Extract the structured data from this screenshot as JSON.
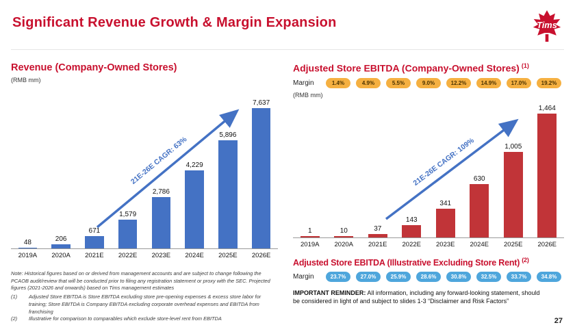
{
  "slide": {
    "title": "Significant Revenue Growth & Margin Expansion",
    "page_number": "27",
    "logo_text": "Tims"
  },
  "colors": {
    "accent_red": "#C8102E",
    "bar_blue": "#4472C4",
    "bar_red": "#C13438",
    "badge_yellow": "#F5B041",
    "badge_blue": "#4EA6DC",
    "arrow_blue": "#4472C4"
  },
  "left_section": {
    "heading": "Revenue (Company-Owned Stores)",
    "unit_label": "(RMB mm)"
  },
  "right_section": {
    "heading": "Adjusted Store EBITDA (Company-Owned Stores)",
    "heading_sup": "(1)",
    "unit_label": "(RMB mm)",
    "heading2": "Adjusted Store EBITDA (Illustrative Excluding Store Rent)",
    "heading2_sup": "(2)"
  },
  "margin_rows": [
    {
      "label": "Margin",
      "style": "yellow",
      "values": [
        "1.4%",
        "4.9%",
        "5.5%",
        "9.0%",
        "12.2%",
        "14.9%",
        "17.0%",
        "19.2%"
      ]
    },
    {
      "label": "Margin",
      "style": "blue",
      "values": [
        "23.7%",
        "27.0%",
        "25.9%",
        "28.6%",
        "30.8%",
        "32.5%",
        "33.7%",
        "34.8%"
      ]
    }
  ],
  "notes": {
    "note": "Note: Historical figures based on or derived from management accounts and are subject to change following the PCAOB audit/review that will be conducted prior to filing any registration statement or proxy with the SEC. Projected figures (2021-2026 and onwards) based on Tims management estimates",
    "items": [
      {
        "num": "(1)",
        "text": "Adjusted Store EBITDA is Store EBITDA excluding store pre-opening expenses & excess store labor for training; Store EBITDA is Company EBITDA excluding corporate overhead expenses and EBITDA from franchising"
      },
      {
        "num": "(2)",
        "text": "Illustrative for comparison to comparables which exclude store-level rent from EBITDA"
      }
    ]
  },
  "reminder": {
    "label": "IMPORTANT REMINDER:",
    "text": "All information, including any forward-looking statement, should be considered in light of and subject to slides 1-3 “Disclaimer and Risk Factors”"
  },
  "chart_data": [
    {
      "type": "bar",
      "title": "Revenue (Company-Owned Stores)",
      "ylabel": "RMB mm",
      "categories": [
        "2019A",
        "2020A",
        "2021E",
        "2022E",
        "2023E",
        "2024E",
        "2025E",
        "2026E"
      ],
      "values": [
        48,
        206,
        671,
        1579,
        2786,
        4229,
        5896,
        7637
      ],
      "value_labels": [
        "48",
        "206",
        "671",
        "1,579",
        "2,786",
        "4,229",
        "5,896",
        "7,637"
      ],
      "bar_color": "#4472C4",
      "annotation": "21E-26E CAGR: 63%",
      "ylim": [
        0,
        7637
      ],
      "grid": false,
      "legend": false
    },
    {
      "type": "bar",
      "title": "Adjusted Store EBITDA (Company-Owned Stores)",
      "ylabel": "RMB mm",
      "categories": [
        "2019A",
        "2020A",
        "2021E",
        "2022E",
        "2023E",
        "2024E",
        "2025E",
        "2026E"
      ],
      "values": [
        1,
        10,
        37,
        143,
        341,
        630,
        1005,
        1464
      ],
      "value_labels": [
        "1",
        "10",
        "37",
        "143",
        "341",
        "630",
        "1,005",
        "1,464"
      ],
      "bar_color": "#C13438",
      "annotation": "21E-26E CAGR: 109%",
      "ylim": [
        0,
        1464
      ],
      "grid": false,
      "legend": false,
      "margins": [
        "1.4%",
        "4.9%",
        "5.5%",
        "9.0%",
        "12.2%",
        "14.9%",
        "17.0%",
        "19.2%"
      ]
    },
    {
      "type": "table",
      "title": "Adjusted Store EBITDA (Illustrative Excluding Store Rent)",
      "categories": [
        "2019A",
        "2020A",
        "2021E",
        "2022E",
        "2023E",
        "2024E",
        "2025E",
        "2026E"
      ],
      "values": [
        "23.7%",
        "27.0%",
        "25.9%",
        "28.6%",
        "30.8%",
        "32.5%",
        "33.7%",
        "34.8%"
      ]
    }
  ]
}
